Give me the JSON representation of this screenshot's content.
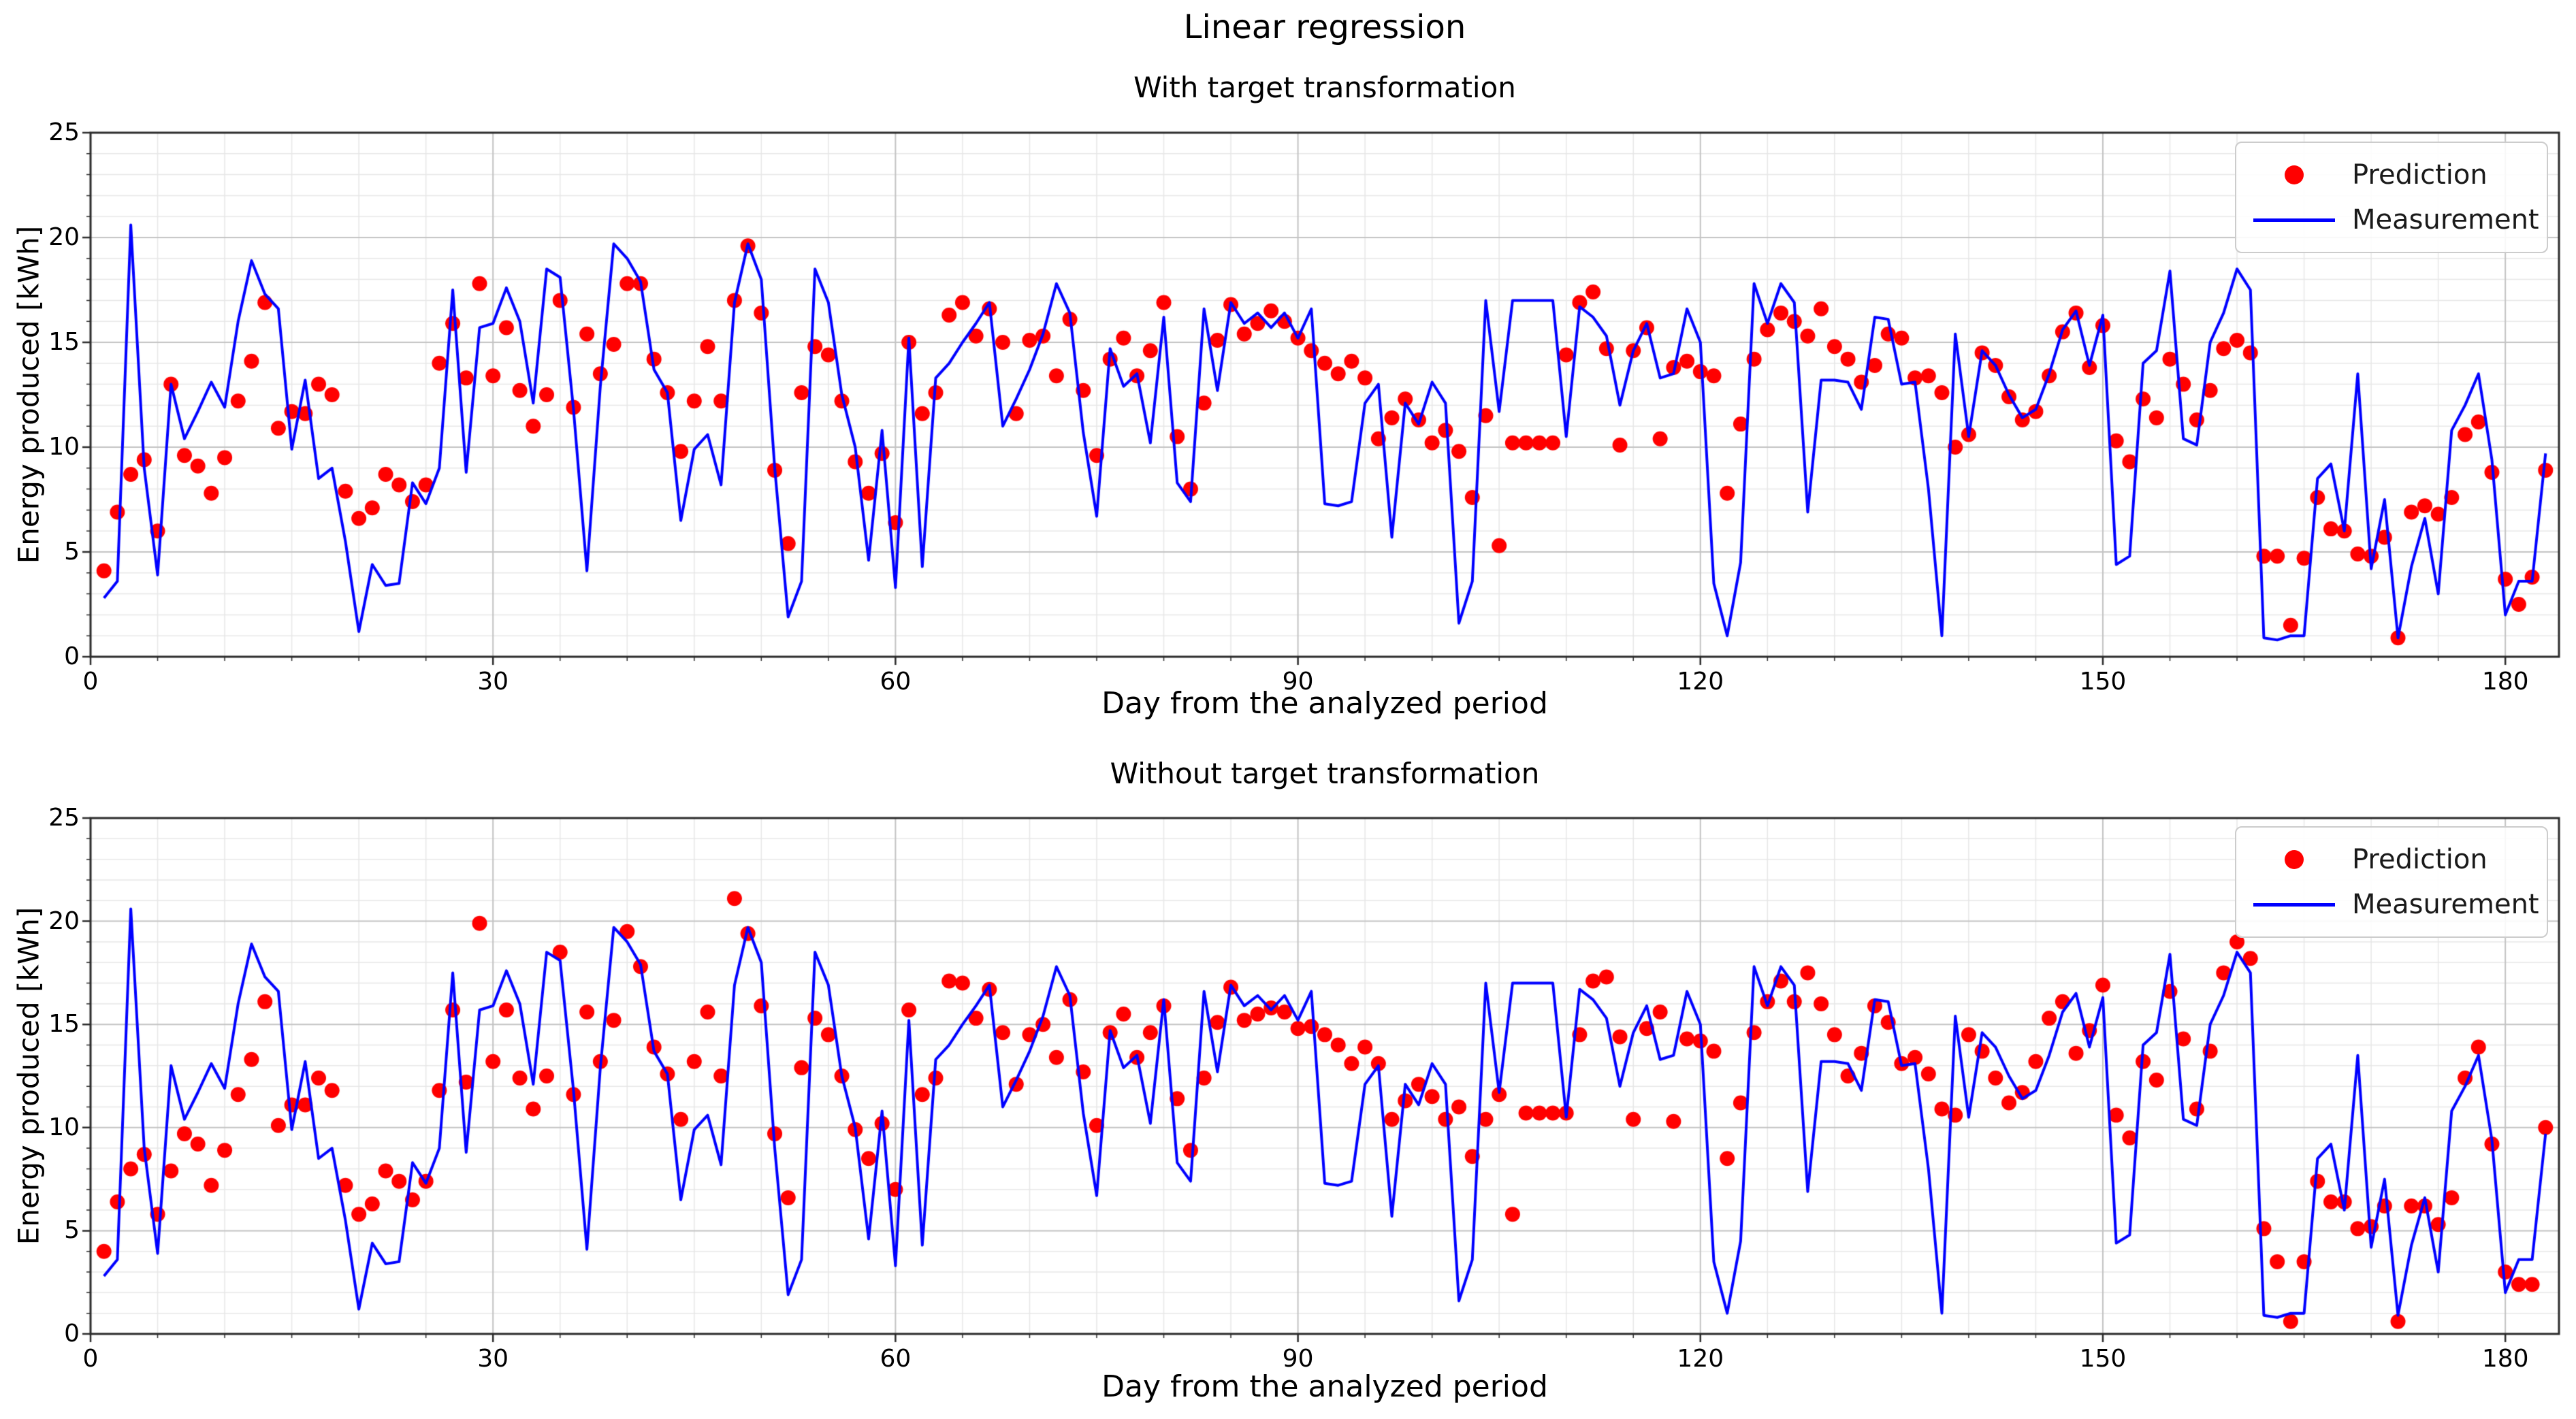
{
  "suptitle": "Linear regression",
  "legend": {
    "items": [
      {
        "label": "Prediction",
        "marker": "dot-icon",
        "color": "#ff0000"
      },
      {
        "label": "Measurement",
        "marker": "line-icon",
        "color": "#0000ff"
      }
    ],
    "position": "upper right"
  },
  "axis": {
    "xlabel": "Day from the analyzed period",
    "ylabel": "Energy produced [kWh]",
    "xticks": [
      0,
      30,
      60,
      90,
      120,
      150,
      180
    ],
    "yticks": [
      0,
      5,
      10,
      15,
      20,
      25
    ],
    "xlim": [
      0,
      184
    ],
    "ylim": [
      0,
      25
    ],
    "grid": "major and minor, light gray",
    "minor_x_step": 5,
    "minor_y_step": 1
  },
  "colors": {
    "prediction": "#ff0000",
    "measurement": "#0000ff",
    "grid_major": "#c3c3c3",
    "grid_minor": "#e7e7e7",
    "frame": "#2a2a2a"
  },
  "chart_data": [
    {
      "type": "line+scatter",
      "title": "With target transformation",
      "x_start": 1,
      "series": [
        {
          "name": "Prediction",
          "type": "scatter",
          "color": "#ff0000",
          "values": [
            4.1,
            6.9,
            8.7,
            9.4,
            6.0,
            13.0,
            9.6,
            9.1,
            7.8,
            9.5,
            12.2,
            14.1,
            16.9,
            10.9,
            11.7,
            11.6,
            13.0,
            12.5,
            7.9,
            6.6,
            7.1,
            8.7,
            8.2,
            7.4,
            8.2,
            14.0,
            15.9,
            13.3,
            17.8,
            13.4,
            15.7,
            12.7,
            11.0,
            12.5,
            17.0,
            11.9,
            15.4,
            13.5,
            14.9,
            17.8,
            17.8,
            14.2,
            12.6,
            9.8,
            12.2,
            14.8,
            12.2,
            17.0,
            19.6,
            16.4,
            8.9,
            5.4,
            12.6,
            14.8,
            14.4,
            12.2,
            9.3,
            7.8,
            9.7,
            6.4,
            15.0,
            11.6,
            12.6,
            16.3,
            16.9,
            15.3,
            16.6,
            15.0,
            11.6,
            15.1,
            15.3,
            13.4,
            16.1,
            12.7,
            9.6,
            14.2,
            15.2,
            13.4,
            14.6,
            16.9,
            10.5,
            8.0,
            12.1,
            15.1,
            16.8,
            15.4,
            15.9,
            16.5,
            16.0,
            15.2,
            14.6,
            14.0,
            13.5,
            14.1,
            13.3,
            10.4,
            11.4,
            12.3,
            11.3,
            10.2,
            10.8,
            9.8,
            7.6,
            11.5,
            5.3,
            10.2,
            10.2,
            10.2,
            10.2,
            14.4,
            16.9,
            17.4,
            14.7,
            10.1,
            14.6,
            15.7,
            10.4,
            13.8,
            14.1,
            13.6,
            13.4,
            7.8,
            11.1,
            14.2,
            15.6,
            16.4,
            16.0,
            15.3,
            16.6,
            14.8,
            14.2,
            13.1,
            13.9,
            15.4,
            15.2,
            13.3,
            13.4,
            12.6,
            10.0,
            10.6,
            14.5,
            13.9,
            12.4,
            11.3,
            11.7,
            13.4,
            15.5,
            16.4,
            13.8,
            15.8,
            10.3,
            9.3,
            12.3,
            11.4,
            14.2,
            13.0,
            11.3,
            12.7,
            14.7,
            15.1,
            14.5,
            4.8,
            4.8,
            1.5,
            4.7,
            7.6,
            6.1,
            6.0,
            4.9,
            4.8,
            5.7,
            0.9,
            6.9,
            7.2,
            6.8,
            7.6,
            10.6,
            11.2,
            8.8,
            3.7,
            2.5,
            3.8,
            8.9
          ]
        },
        {
          "name": "Measurement",
          "type": "line",
          "color": "#0000ff",
          "values": [
            2.8,
            3.6,
            20.6,
            9.0,
            3.9,
            13.0,
            10.4,
            11.7,
            13.1,
            11.9,
            16.0,
            18.9,
            17.3,
            16.6,
            9.9,
            13.2,
            8.5,
            9.0,
            5.5,
            1.2,
            4.4,
            3.4,
            3.5,
            8.3,
            7.3,
            9.0,
            17.5,
            8.8,
            15.7,
            15.9,
            17.6,
            16.0,
            12.1,
            18.5,
            18.1,
            11.8,
            4.1,
            12.9,
            19.7,
            19.0,
            17.9,
            13.7,
            12.6,
            6.5,
            9.9,
            10.6,
            8.2,
            16.9,
            19.7,
            18.0,
            9.0,
            1.9,
            3.6,
            18.5,
            16.9,
            12.5,
            10.0,
            4.6,
            10.8,
            3.3,
            15.2,
            4.3,
            13.3,
            14.0,
            15.0,
            15.9,
            16.9,
            11.0,
            12.3,
            13.7,
            15.4,
            17.8,
            16.4,
            10.7,
            6.7,
            14.7,
            12.9,
            13.5,
            10.2,
            16.2,
            8.3,
            7.4,
            16.6,
            12.7,
            16.9,
            15.9,
            16.4,
            15.7,
            16.4,
            15.2,
            16.6,
            7.3,
            7.2,
            7.4,
            12.1,
            13.0,
            5.7,
            12.1,
            11.1,
            13.1,
            12.1,
            1.6,
            3.6,
            17.0,
            11.7,
            17.0,
            17.0,
            17.0,
            17.0,
            10.5,
            16.7,
            16.2,
            15.3,
            12.0,
            14.6,
            15.9,
            13.3,
            13.5,
            16.6,
            15.0,
            3.5,
            1.0,
            4.5,
            17.8,
            15.9,
            17.8,
            16.9,
            6.9,
            13.2,
            13.2,
            13.1,
            11.8,
            16.2,
            16.1,
            13.0,
            13.1,
            8.0,
            1.0,
            15.4,
            10.5,
            14.6,
            13.9,
            12.5,
            11.4,
            11.8,
            13.5,
            15.6,
            16.5,
            13.9,
            16.3,
            4.4,
            4.8,
            14.0,
            14.6,
            18.4,
            10.4,
            10.1,
            15.0,
            16.4,
            18.5,
            17.5,
            0.9,
            0.8,
            1.0,
            1.0,
            8.5,
            9.2,
            6.0,
            13.5,
            4.2,
            7.5,
            0.9,
            4.3,
            6.6,
            3.0,
            10.8,
            12.0,
            13.5,
            9.4,
            2.0,
            3.6,
            3.6,
            9.7
          ]
        }
      ]
    },
    {
      "type": "line+scatter",
      "title": "Without target transformation",
      "x_start": 1,
      "series": [
        {
          "name": "Prediction",
          "type": "scatter",
          "color": "#ff0000",
          "values": [
            4.0,
            6.4,
            8.0,
            8.7,
            5.8,
            7.9,
            9.7,
            9.2,
            7.2,
            8.9,
            11.6,
            13.3,
            16.1,
            10.1,
            11.1,
            11.1,
            12.4,
            11.8,
            7.2,
            5.8,
            6.3,
            7.9,
            7.4,
            6.5,
            7.4,
            11.8,
            15.7,
            12.2,
            19.9,
            13.2,
            15.7,
            12.4,
            10.9,
            12.5,
            18.5,
            11.6,
            15.6,
            13.2,
            15.2,
            19.5,
            17.8,
            13.9,
            12.6,
            10.4,
            13.2,
            15.6,
            12.5,
            21.1,
            19.4,
            15.9,
            9.7,
            6.6,
            12.9,
            15.3,
            14.5,
            12.5,
            9.9,
            8.5,
            10.2,
            7.0,
            15.7,
            11.6,
            12.4,
            17.1,
            17.0,
            15.3,
            16.7,
            14.6,
            12.1,
            14.5,
            15.0,
            13.4,
            16.2,
            12.7,
            10.1,
            14.6,
            15.5,
            13.4,
            14.6,
            15.9,
            11.4,
            8.9,
            12.4,
            15.1,
            16.8,
            15.2,
            15.5,
            15.8,
            15.6,
            14.8,
            14.9,
            14.5,
            14.0,
            13.1,
            13.9,
            13.1,
            10.4,
            11.3,
            12.1,
            11.5,
            10.4,
            11.0,
            8.6,
            10.4,
            11.6,
            5.8,
            10.7,
            10.7,
            10.7,
            10.7,
            14.5,
            17.1,
            17.3,
            14.4,
            10.4,
            14.8,
            15.6,
            10.3,
            14.3,
            14.2,
            13.7,
            8.5,
            11.2,
            14.6,
            16.1,
            17.1,
            16.1,
            17.5,
            16.0,
            14.5,
            12.5,
            13.6,
            15.9,
            15.1,
            13.1,
            13.4,
            12.6,
            10.9,
            10.6,
            14.5,
            13.7,
            12.4,
            11.2,
            11.7,
            13.2,
            15.3,
            16.1,
            13.6,
            14.7,
            16.9,
            10.6,
            9.5,
            13.2,
            12.3,
            16.6,
            14.3,
            10.9,
            13.7,
            17.5,
            19.0,
            18.2,
            5.1,
            3.5,
            0.6,
            3.5,
            7.4,
            6.4,
            6.4,
            5.1,
            5.2,
            6.2,
            0.6,
            6.2,
            6.2,
            5.3,
            6.6,
            12.4,
            13.9,
            9.2,
            3.0,
            2.4,
            2.4,
            10.0
          ]
        },
        {
          "name": "Measurement",
          "type": "line",
          "color": "#0000ff",
          "values": [
            2.8,
            3.6,
            20.6,
            9.0,
            3.9,
            13.0,
            10.4,
            11.7,
            13.1,
            11.9,
            16.0,
            18.9,
            17.3,
            16.6,
            9.9,
            13.2,
            8.5,
            9.0,
            5.5,
            1.2,
            4.4,
            3.4,
            3.5,
            8.3,
            7.3,
            9.0,
            17.5,
            8.8,
            15.7,
            15.9,
            17.6,
            16.0,
            12.1,
            18.5,
            18.1,
            11.8,
            4.1,
            12.9,
            19.7,
            19.0,
            17.9,
            13.7,
            12.6,
            6.5,
            9.9,
            10.6,
            8.2,
            16.9,
            19.7,
            18.0,
            9.0,
            1.9,
            3.6,
            18.5,
            16.9,
            12.5,
            10.0,
            4.6,
            10.8,
            3.3,
            15.2,
            4.3,
            13.3,
            14.0,
            15.0,
            15.9,
            16.9,
            11.0,
            12.3,
            13.7,
            15.4,
            17.8,
            16.4,
            10.7,
            6.7,
            14.7,
            12.9,
            13.5,
            10.2,
            16.2,
            8.3,
            7.4,
            16.6,
            12.7,
            16.9,
            15.9,
            16.4,
            15.7,
            16.4,
            15.2,
            16.6,
            7.3,
            7.2,
            7.4,
            12.1,
            13.0,
            5.7,
            12.1,
            11.1,
            13.1,
            12.1,
            1.6,
            3.6,
            17.0,
            11.7,
            17.0,
            17.0,
            17.0,
            17.0,
            10.5,
            16.7,
            16.2,
            15.3,
            12.0,
            14.6,
            15.9,
            13.3,
            13.5,
            16.6,
            15.0,
            3.5,
            1.0,
            4.5,
            17.8,
            15.9,
            17.8,
            16.9,
            6.9,
            13.2,
            13.2,
            13.1,
            11.8,
            16.2,
            16.1,
            13.0,
            13.1,
            8.0,
            1.0,
            15.4,
            10.5,
            14.6,
            13.9,
            12.5,
            11.4,
            11.8,
            13.5,
            15.6,
            16.5,
            13.9,
            16.3,
            4.4,
            4.8,
            14.0,
            14.6,
            18.4,
            10.4,
            10.1,
            15.0,
            16.4,
            18.5,
            17.5,
            0.9,
            0.8,
            1.0,
            1.0,
            8.5,
            9.2,
            6.0,
            13.5,
            4.2,
            7.5,
            0.9,
            4.3,
            6.6,
            3.0,
            10.8,
            12.0,
            13.5,
            9.4,
            2.0,
            3.6,
            3.6,
            9.7
          ]
        }
      ]
    }
  ]
}
